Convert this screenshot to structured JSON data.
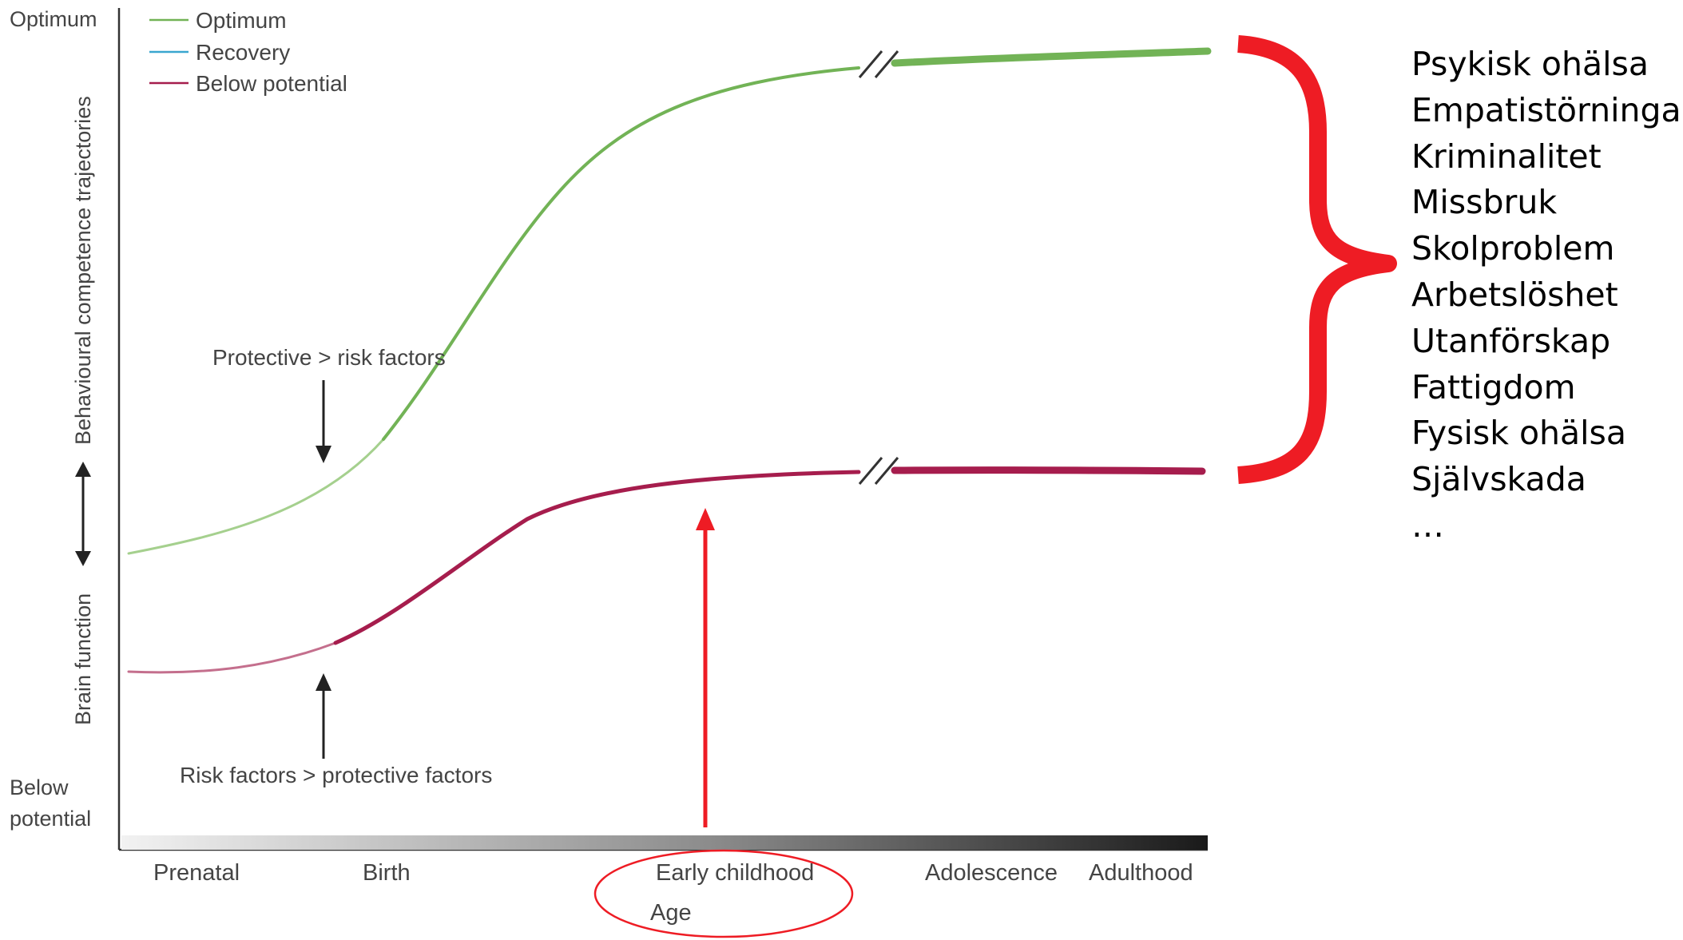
{
  "y_axis": {
    "top_label": "Optimum",
    "bottom_label_line1": "Below",
    "bottom_label_line2": "potential",
    "upper_vertical_label": "Behavioural competence trajectories",
    "lower_vertical_label": "Brain function"
  },
  "legend": [
    {
      "label": "Optimum",
      "color": "#72b356"
    },
    {
      "label": "Recovery",
      "color": "#3aa6cf"
    },
    {
      "label": "Below potential",
      "color": "#a61d4d"
    }
  ],
  "annotations": {
    "protective": "Protective > risk factors",
    "risk": "Risk factors > protective factors"
  },
  "x_axis": {
    "stages": [
      "Prenatal",
      "Birth",
      "Early childhood",
      "Adolescence",
      "Adulthood"
    ],
    "title": "Age"
  },
  "outcomes": [
    "Psykisk ohälsa",
    "Empatistörningar",
    "Kriminalitet",
    "Missbruk",
    "Skolproblem",
    "Arbetslöshet",
    "Utanförskap",
    "Fattigdom",
    "Fysisk ohälsa",
    "Självskada",
    "…"
  ],
  "colors": {
    "optimum": "#72b356",
    "recovery": "#3aa6cf",
    "below_potential": "#a61d4d",
    "highlight": "#ee1c24",
    "axis": "#333333"
  }
}
